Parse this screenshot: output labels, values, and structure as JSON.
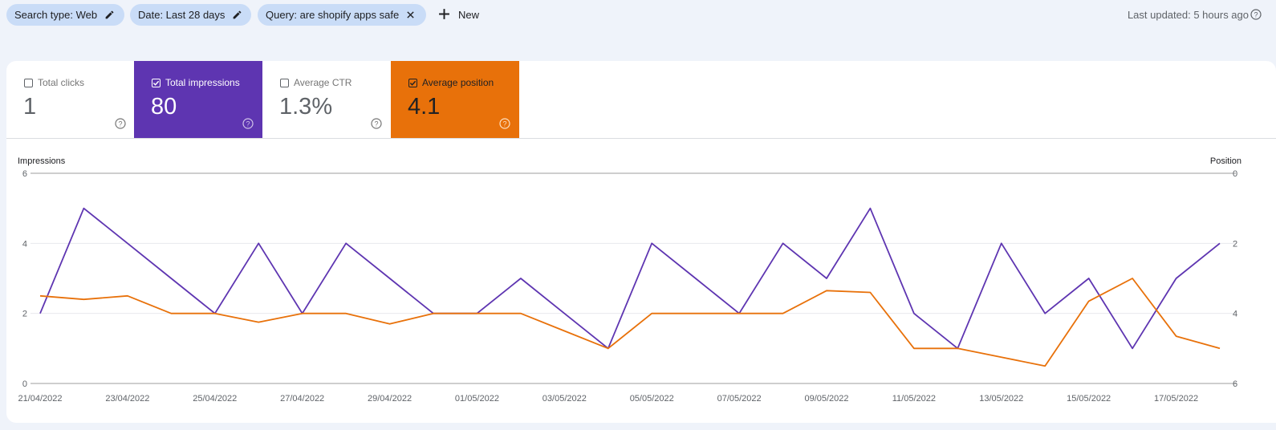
{
  "filters": [
    {
      "label": "Search type: Web",
      "icon": "pencil-icon"
    },
    {
      "label": "Date: Last 28 days",
      "icon": "pencil-icon"
    },
    {
      "label": "Query: are shopify apps safe",
      "icon": "close-icon"
    }
  ],
  "new_label": "New",
  "last_updated": "Last updated: 5 hours ago",
  "metrics": [
    {
      "label": "Total clicks",
      "value": "1",
      "checked": false
    },
    {
      "label": "Total impressions",
      "value": "80",
      "checked": true,
      "color": "#5e35b1"
    },
    {
      "label": "Average CTR",
      "value": "1.3%",
      "checked": false
    },
    {
      "label": "Average position",
      "value": "4.1",
      "checked": true,
      "color": "#e8710a"
    }
  ],
  "chart_data": {
    "type": "line",
    "left_axis_label": "Impressions",
    "right_axis_label": "Position",
    "left_ylim": [
      0,
      6
    ],
    "right_ylim": [
      0,
      6
    ],
    "right_axis_inverted": true,
    "left_ticks": [
      "6",
      "4",
      "2",
      "0"
    ],
    "right_ticks": [
      "0",
      "2",
      "4",
      "6"
    ],
    "x_tick_labels": [
      "21/04/2022",
      "23/04/2022",
      "25/04/2022",
      "27/04/2022",
      "29/04/2022",
      "01/05/2022",
      "03/05/2022",
      "05/05/2022",
      "07/05/2022",
      "09/05/2022",
      "11/05/2022",
      "13/05/2022",
      "15/05/2022",
      "17/05/2022"
    ],
    "dates": [
      "21/04/2022",
      "22/04/2022",
      "23/04/2022",
      "24/04/2022",
      "25/04/2022",
      "26/04/2022",
      "27/04/2022",
      "28/04/2022",
      "29/04/2022",
      "30/04/2022",
      "01/05/2022",
      "02/05/2022",
      "03/05/2022",
      "04/05/2022",
      "05/05/2022",
      "06/05/2022",
      "07/05/2022",
      "08/05/2022",
      "09/05/2022",
      "10/05/2022",
      "11/05/2022",
      "12/05/2022",
      "13/05/2022",
      "14/05/2022",
      "15/05/2022",
      "16/05/2022",
      "17/05/2022",
      "18/05/2022"
    ],
    "series": [
      {
        "name": "Total impressions",
        "color": "#5e35b1",
        "axis": "left",
        "values": [
          2,
          5,
          4,
          3,
          2,
          4,
          2,
          4,
          3,
          2,
          2,
          3,
          2,
          1,
          4,
          3,
          2,
          4,
          3,
          5,
          2,
          1,
          4,
          2,
          3,
          1,
          3,
          4
        ]
      },
      {
        "name": "Average position",
        "color": "#e8710a",
        "axis": "right",
        "values": [
          3.5,
          3.6,
          3.5,
          4,
          4,
          4.25,
          4,
          4,
          4.3,
          4,
          4,
          4,
          4.5,
          5,
          4,
          4,
          4,
          4,
          3.35,
          3.4,
          5,
          5,
          5.25,
          5.5,
          3.65,
          3,
          4.65,
          5
        ]
      }
    ],
    "grid": true
  }
}
